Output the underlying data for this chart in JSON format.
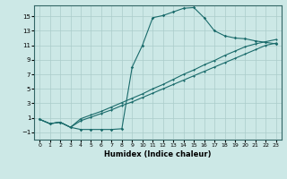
{
  "title": "",
  "xlabel": "Humidex (Indice chaleur)",
  "ylabel": "",
  "bg_color": "#cce8e6",
  "grid_color": "#aaccca",
  "line_color": "#1a6b6b",
  "xlim": [
    -0.5,
    23.5
  ],
  "ylim": [
    -2.0,
    16.5
  ],
  "xticks": [
    0,
    1,
    2,
    3,
    4,
    5,
    6,
    7,
    8,
    9,
    10,
    11,
    12,
    13,
    14,
    15,
    16,
    17,
    18,
    19,
    20,
    21,
    22,
    23
  ],
  "yticks": [
    -1,
    1,
    3,
    5,
    7,
    9,
    11,
    13,
    15
  ],
  "curve1_x": [
    0,
    1,
    2,
    3,
    4,
    5,
    6,
    7,
    8,
    9,
    10,
    11,
    12,
    13,
    14,
    15,
    16,
    17,
    18,
    19,
    20,
    21,
    22,
    23
  ],
  "curve1_y": [
    0.8,
    0.2,
    0.4,
    -0.3,
    -0.6,
    -0.6,
    -0.6,
    -0.6,
    -0.5,
    8.0,
    11.0,
    14.8,
    15.1,
    15.6,
    16.1,
    16.2,
    14.8,
    13.0,
    12.3,
    12.0,
    11.9,
    11.6,
    11.4,
    11.2
  ],
  "curve2_x": [
    0,
    1,
    2,
    3,
    4,
    5,
    6,
    7,
    8,
    9,
    10,
    11,
    12,
    13,
    14,
    15,
    16,
    17,
    18,
    19,
    20,
    21,
    22,
    23
  ],
  "curve2_y": [
    0.8,
    0.2,
    0.4,
    -0.3,
    0.88,
    1.4,
    1.9,
    2.5,
    3.1,
    3.7,
    4.3,
    5.0,
    5.6,
    6.3,
    7.0,
    7.6,
    8.3,
    8.9,
    9.6,
    10.2,
    10.8,
    11.2,
    11.5,
    11.8
  ],
  "curve3_x": [
    0,
    1,
    2,
    3,
    4,
    5,
    6,
    7,
    8,
    9,
    10,
    11,
    12,
    13,
    14,
    15,
    16,
    17,
    18,
    19,
    20,
    21,
    22,
    23
  ],
  "curve3_y": [
    0.8,
    0.2,
    0.4,
    -0.3,
    0.6,
    1.1,
    1.6,
    2.1,
    2.7,
    3.2,
    3.8,
    4.4,
    5.0,
    5.6,
    6.2,
    6.8,
    7.4,
    8.0,
    8.6,
    9.2,
    9.8,
    10.4,
    11.0,
    11.3
  ]
}
